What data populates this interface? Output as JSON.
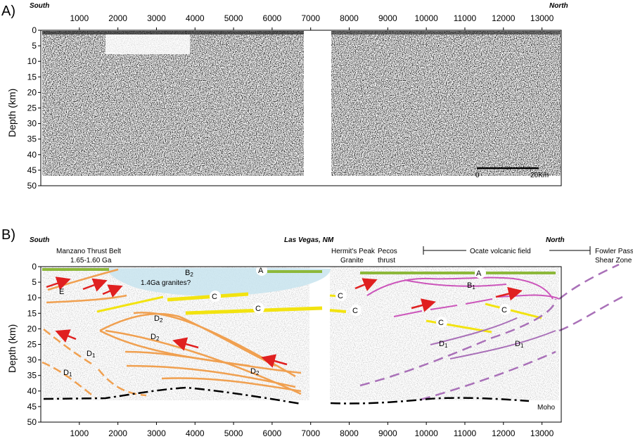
{
  "panel_a": {
    "panel_label": "A)",
    "side_left": "South",
    "side_right": "North",
    "y_axis_label": "Depth (km)",
    "x_ticks": [
      "1000",
      "2000",
      "3000",
      "4000",
      "5000",
      "6000",
      "7000",
      "8000",
      "9000",
      "10000",
      "11000",
      "12000",
      "13000"
    ],
    "y_ticks": [
      "0",
      "5",
      "10",
      "15",
      "20",
      "25",
      "30",
      "35",
      "40",
      "45",
      "50"
    ],
    "scale_bar": {
      "start_label": "0",
      "end_label": "20Km"
    }
  },
  "panel_b": {
    "panel_label": "B)",
    "side_left": "South",
    "side_center": "Las Vegas, NM",
    "side_right": "North",
    "y_axis_label": "Depth (km)",
    "x_ticks": [
      "1000",
      "2000",
      "3000",
      "4000",
      "5000",
      "6000",
      "7000",
      "8000",
      "9000",
      "10000",
      "11000",
      "12000",
      "13000"
    ],
    "y_ticks": [
      "0",
      "5",
      "10",
      "15",
      "20",
      "25",
      "30",
      "35",
      "40",
      "45",
      "50"
    ],
    "geologic_labels": {
      "manzano_line1": "Manzano Thrust Belt",
      "manzano_line2": "1.65-1.60 Ga",
      "hermit_line1": "Hermit's Peak",
      "hermit_line2": "Granite",
      "pecos_line1": "Pecos",
      "pecos_line2": "thrust",
      "ocate": "Ocate volcanic field",
      "fowler_line1": "Fowler Pass",
      "fowler_line2": "Shear Zone",
      "granites": "1.4Ga granites?",
      "moho": "Moho"
    },
    "reflector_labels": {
      "A": "A",
      "B": "B",
      "sub2": "2",
      "sub1": "1",
      "C": "C",
      "D": "D",
      "E": "E"
    },
    "colors": {
      "green_A": "#8DB83A",
      "magenta_B": "#CC55BB",
      "yellow_C": "#F2E310",
      "orange_D": "#F0A050",
      "purple_D1": "#A970B8",
      "red_arrow": "#E02020",
      "moho": "#000000",
      "granite_fill": "#C8E4EE"
    }
  }
}
